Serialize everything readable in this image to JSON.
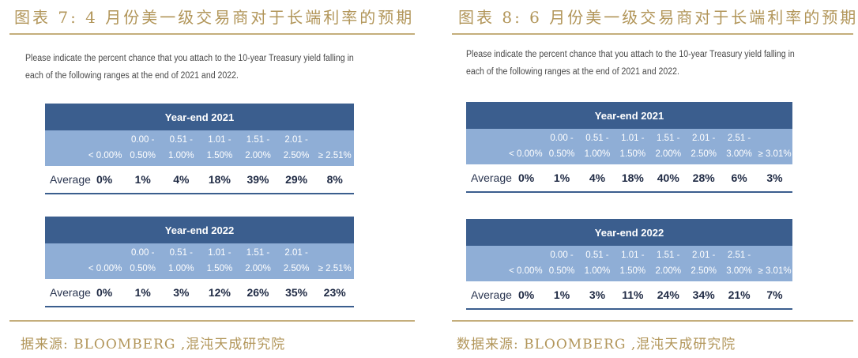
{
  "left": {
    "title": "图表 7: 4 月份美一级交易商对于长端利率的预期",
    "question": "Please indicate the percent chance that you attach to the 10-year Treasury yield falling in each of the following ranges at the end of 2021 and 2022.",
    "avg_label": "Average",
    "ranges": [
      [
        "< 0.00%"
      ],
      [
        "0.00 -",
        "0.50%"
      ],
      [
        "0.51 -",
        "1.00%"
      ],
      [
        "1.01 -",
        "1.50%"
      ],
      [
        "1.51 -",
        "2.00%"
      ],
      [
        "2.01 -",
        "2.50%"
      ],
      [
        "≥ 2.51%"
      ]
    ],
    "tables": [
      {
        "title": "Year-end 2021",
        "values": [
          "0%",
          "1%",
          "4%",
          "18%",
          "39%",
          "29%",
          "8%"
        ]
      },
      {
        "title": "Year-end 2022",
        "values": [
          "0%",
          "1%",
          "3%",
          "12%",
          "26%",
          "35%",
          "23%"
        ]
      }
    ],
    "source": "据来源: BLOOMBERG ,混沌天成研究院"
  },
  "right": {
    "title": "图表 8: 6 月份美一级交易商对于长端利率的预期",
    "question": "Please indicate the percent chance that you attach to the 10-year Treasury yield falling in each of the following ranges at the end of 2021 and 2022.",
    "avg_label": "Average",
    "ranges": [
      [
        "< 0.00%"
      ],
      [
        "0.00 -",
        "0.50%"
      ],
      [
        "0.51 -",
        "1.00%"
      ],
      [
        "1.01 -",
        "1.50%"
      ],
      [
        "1.51 -",
        "2.00%"
      ],
      [
        "2.01 -",
        "2.50%"
      ],
      [
        "2.51 -",
        "3.00%"
      ],
      [
        "≥ 3.01%"
      ]
    ],
    "tables": [
      {
        "title": "Year-end 2021",
        "values": [
          "0%",
          "1%",
          "4%",
          "18%",
          "40%",
          "28%",
          "6%",
          "3%"
        ]
      },
      {
        "title": "Year-end 2022",
        "values": [
          "0%",
          "1%",
          "3%",
          "11%",
          "24%",
          "34%",
          "21%",
          "7%"
        ]
      }
    ],
    "source": "数据来源: BLOOMBERG ,混沌天成研究院"
  }
}
